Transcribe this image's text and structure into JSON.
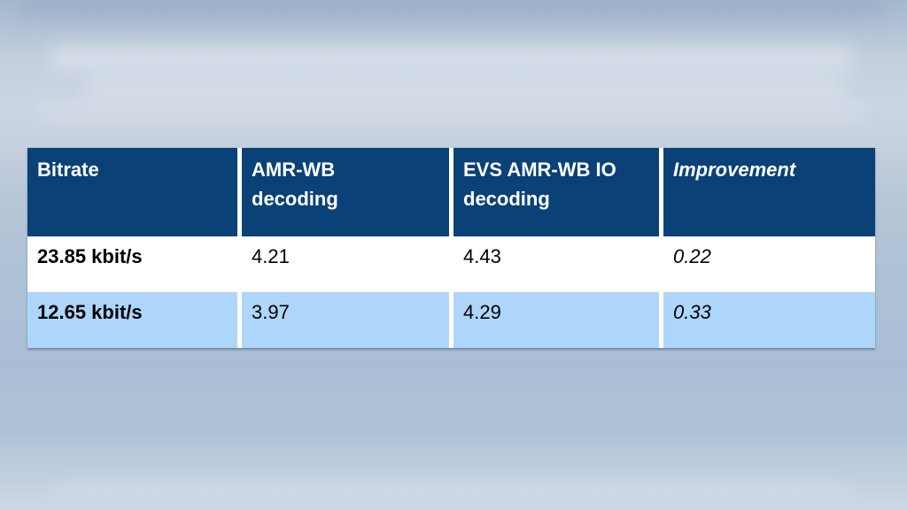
{
  "table": {
    "headers": [
      {
        "label": "Bitrate"
      },
      {
        "label": "AMR-WB\ndecoding"
      },
      {
        "label": "EVS AMR-WB IO\ndecoding"
      },
      {
        "label": "Improvement"
      }
    ],
    "rows": [
      {
        "bitrate": "23.85 kbit/s",
        "amr_wb_decoding": "4.21",
        "evs_amr_wb_io_decoding": "4.43",
        "improvement": "0.22"
      },
      {
        "bitrate": "12.65 kbit/s",
        "amr_wb_decoding": "3.97",
        "evs_amr_wb_io_decoding": "4.29",
        "improvement": "0.33"
      }
    ],
    "colors": {
      "header_bg": "#0a4278",
      "header_text": "#ffffff",
      "row1_bg": "#ffffff",
      "row2_bg": "#aed6fa",
      "cell_text": "#000000"
    }
  },
  "background": {
    "top": "#a4b8cf",
    "upper_band": "#cbd5e2",
    "mid": "#adc1d6",
    "lower": "#a9bed5",
    "bottom": "#cdd8e4"
  }
}
